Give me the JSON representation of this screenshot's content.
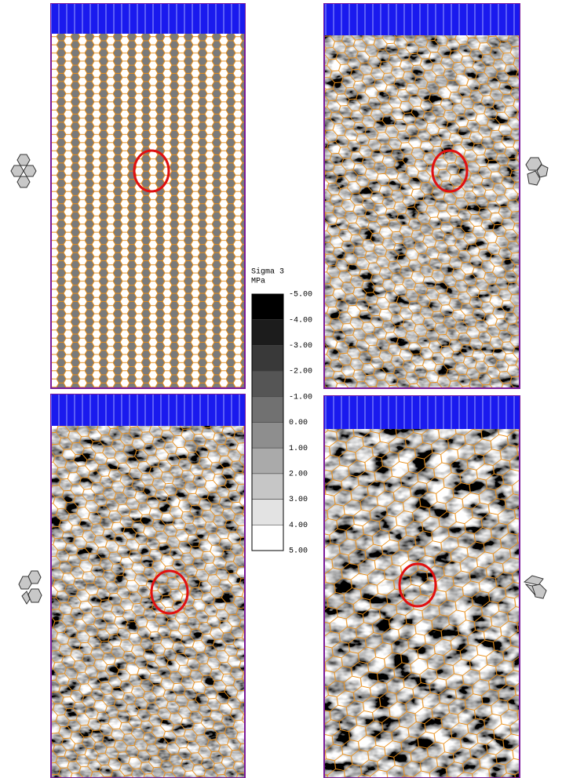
{
  "legend": {
    "title": "Sigma 3",
    "unit": "MPa",
    "labels": [
      "-5.00",
      "-4.00",
      "-3.00",
      "-2.00",
      "-1.00",
      "0.00",
      "1.00",
      "2.00",
      "3.00",
      "4.00",
      "5.00"
    ]
  }
}
